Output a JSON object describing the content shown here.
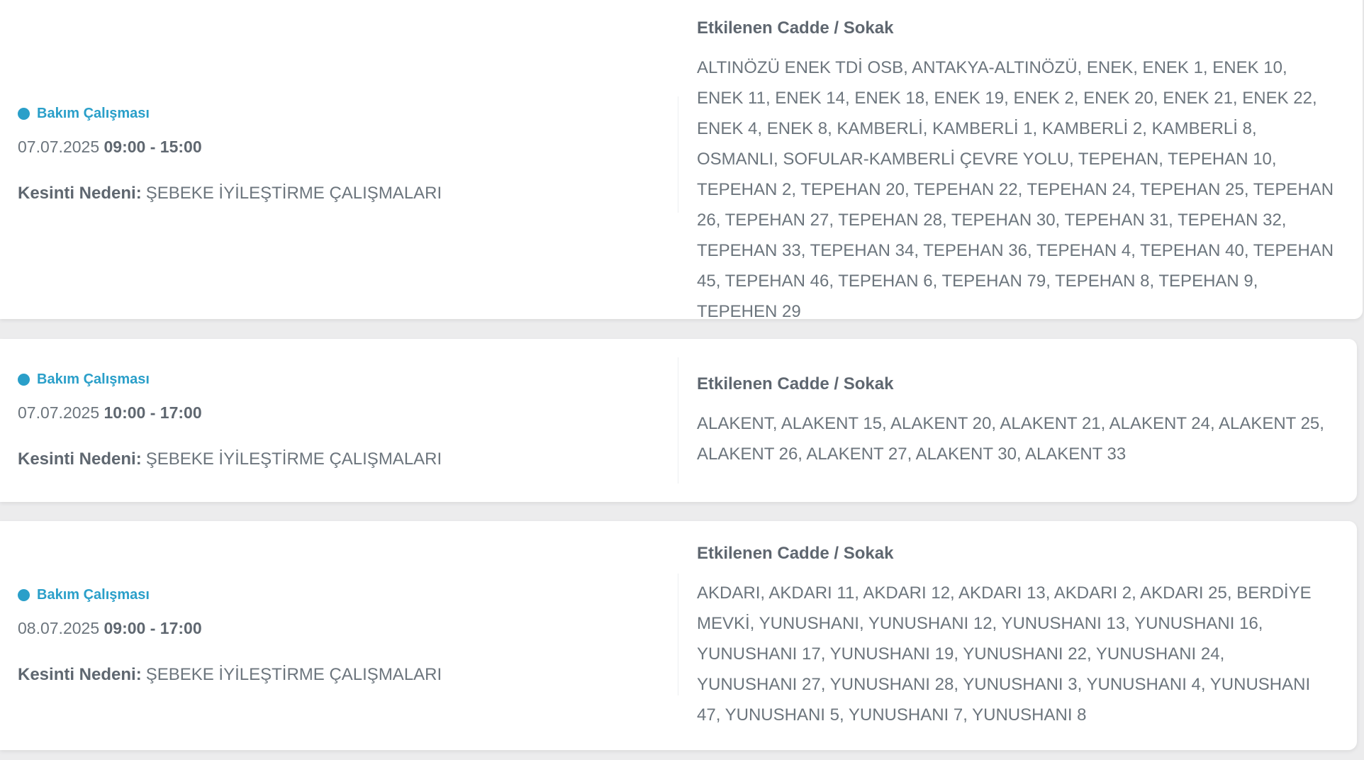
{
  "colors": {
    "accent": "#2a9fc9",
    "background": "#ececed"
  },
  "outages": [
    {
      "type": "Bakım Çalışması",
      "date": "07.07.2025",
      "time": "09:00 - 15:00",
      "reason_label": "Kesinti Nedeni:",
      "reason": "ŞEBEKE İYİLEŞTİRME ÇALIŞMALARI",
      "streets_title": "Etkilenen Cadde / Sokak",
      "streets": "ALTINÖZÜ ENEK TDİ OSB, ANTAKYA-ALTINÖZÜ, ENEK, ENEK 1, ENEK 10, ENEK 11, ENEK 14, ENEK 18, ENEK 19, ENEK 2, ENEK 20, ENEK 21, ENEK 22, ENEK 4, ENEK 8, KAMBERLİ, KAMBERLİ 1, KAMBERLİ 2, KAMBERLİ 8, OSMANLI, SOFULAR-KAMBERLİ ÇEVRE YOLU, TEPEHAN, TEPEHAN 10, TEPEHAN 2, TEPEHAN 20, TEPEHAN 22, TEPEHAN 24, TEPEHAN 25, TEPEHAN 26, TEPEHAN 27, TEPEHAN 28, TEPEHAN 30, TEPEHAN 31, TEPEHAN 32, TEPEHAN 33, TEPEHAN 34, TEPEHAN 36, TEPEHAN 4, TEPEHAN 40, TEPEHAN 45, TEPEHAN 46, TEPEHAN 6, TEPEHAN 79, TEPEHAN 8, TEPEHAN 9, TEPEHEN 29"
    },
    {
      "type": "Bakım Çalışması",
      "date": "07.07.2025",
      "time": "10:00 - 17:00",
      "reason_label": "Kesinti Nedeni:",
      "reason": "ŞEBEKE İYİLEŞTİRME ÇALIŞMALARI",
      "streets_title": "Etkilenen Cadde / Sokak",
      "streets": "ALAKENT, ALAKENT 15, ALAKENT 20, ALAKENT 21, ALAKENT 24, ALAKENT 25, ALAKENT 26, ALAKENT 27, ALAKENT 30, ALAKENT 33"
    },
    {
      "type": "Bakım Çalışması",
      "date": "08.07.2025",
      "time": "09:00 - 17:00",
      "reason_label": "Kesinti Nedeni:",
      "reason": "ŞEBEKE İYİLEŞTİRME ÇALIŞMALARI",
      "streets_title": "Etkilenen Cadde / Sokak",
      "streets": "AKDARI, AKDARI 11, AKDARI 12, AKDARI 13, AKDARI 2, AKDARI 25, BERDİYE MEVKİ, YUNUSHANI, YUNUSHANI 12, YUNUSHANI 13, YUNUSHANI 16, YUNUSHANI 17, YUNUSHANI 19, YUNUSHANI 22, YUNUSHANI 24, YUNUSHANI 27, YUNUSHANI 28, YUNUSHANI 3, YUNUSHANI 4, YUNUSHANI 47, YUNUSHANI 5, YUNUSHANI 7, YUNUSHANI 8"
    }
  ]
}
